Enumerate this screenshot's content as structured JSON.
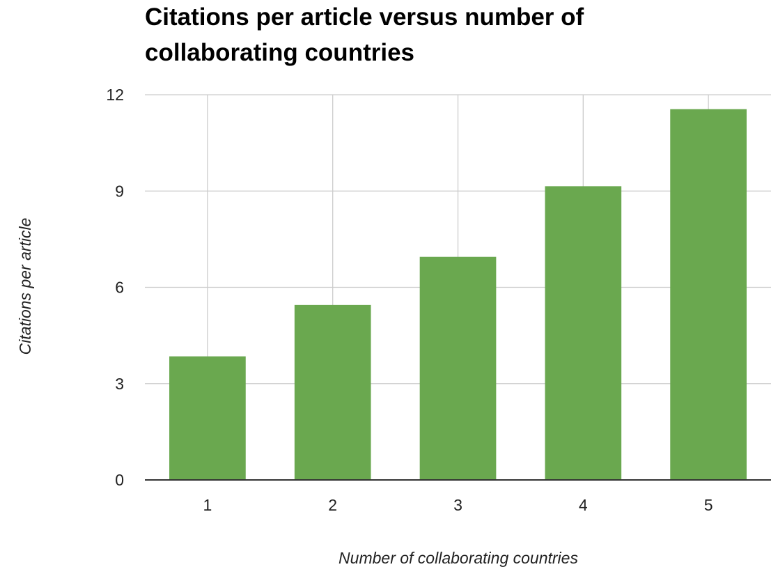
{
  "chart_data": {
    "type": "bar",
    "title": "Citations per article versus number of collaborating countries",
    "title_lines": [
      "Citations per article versus number of",
      "collaborating countries"
    ],
    "xlabel": "Number of collaborating countries",
    "ylabel": "Citations per article",
    "categories": [
      "1",
      "2",
      "3",
      "4",
      "5"
    ],
    "values": [
      3.85,
      5.45,
      6.95,
      9.15,
      11.55
    ],
    "ylim": [
      0,
      12
    ],
    "yticks": [
      "0",
      "3",
      "6",
      "9",
      "12"
    ],
    "grid": true,
    "legend": "none",
    "bar_color": "#6aa84f",
    "grid_color": "#cccccc",
    "axis_color": "#333333"
  }
}
